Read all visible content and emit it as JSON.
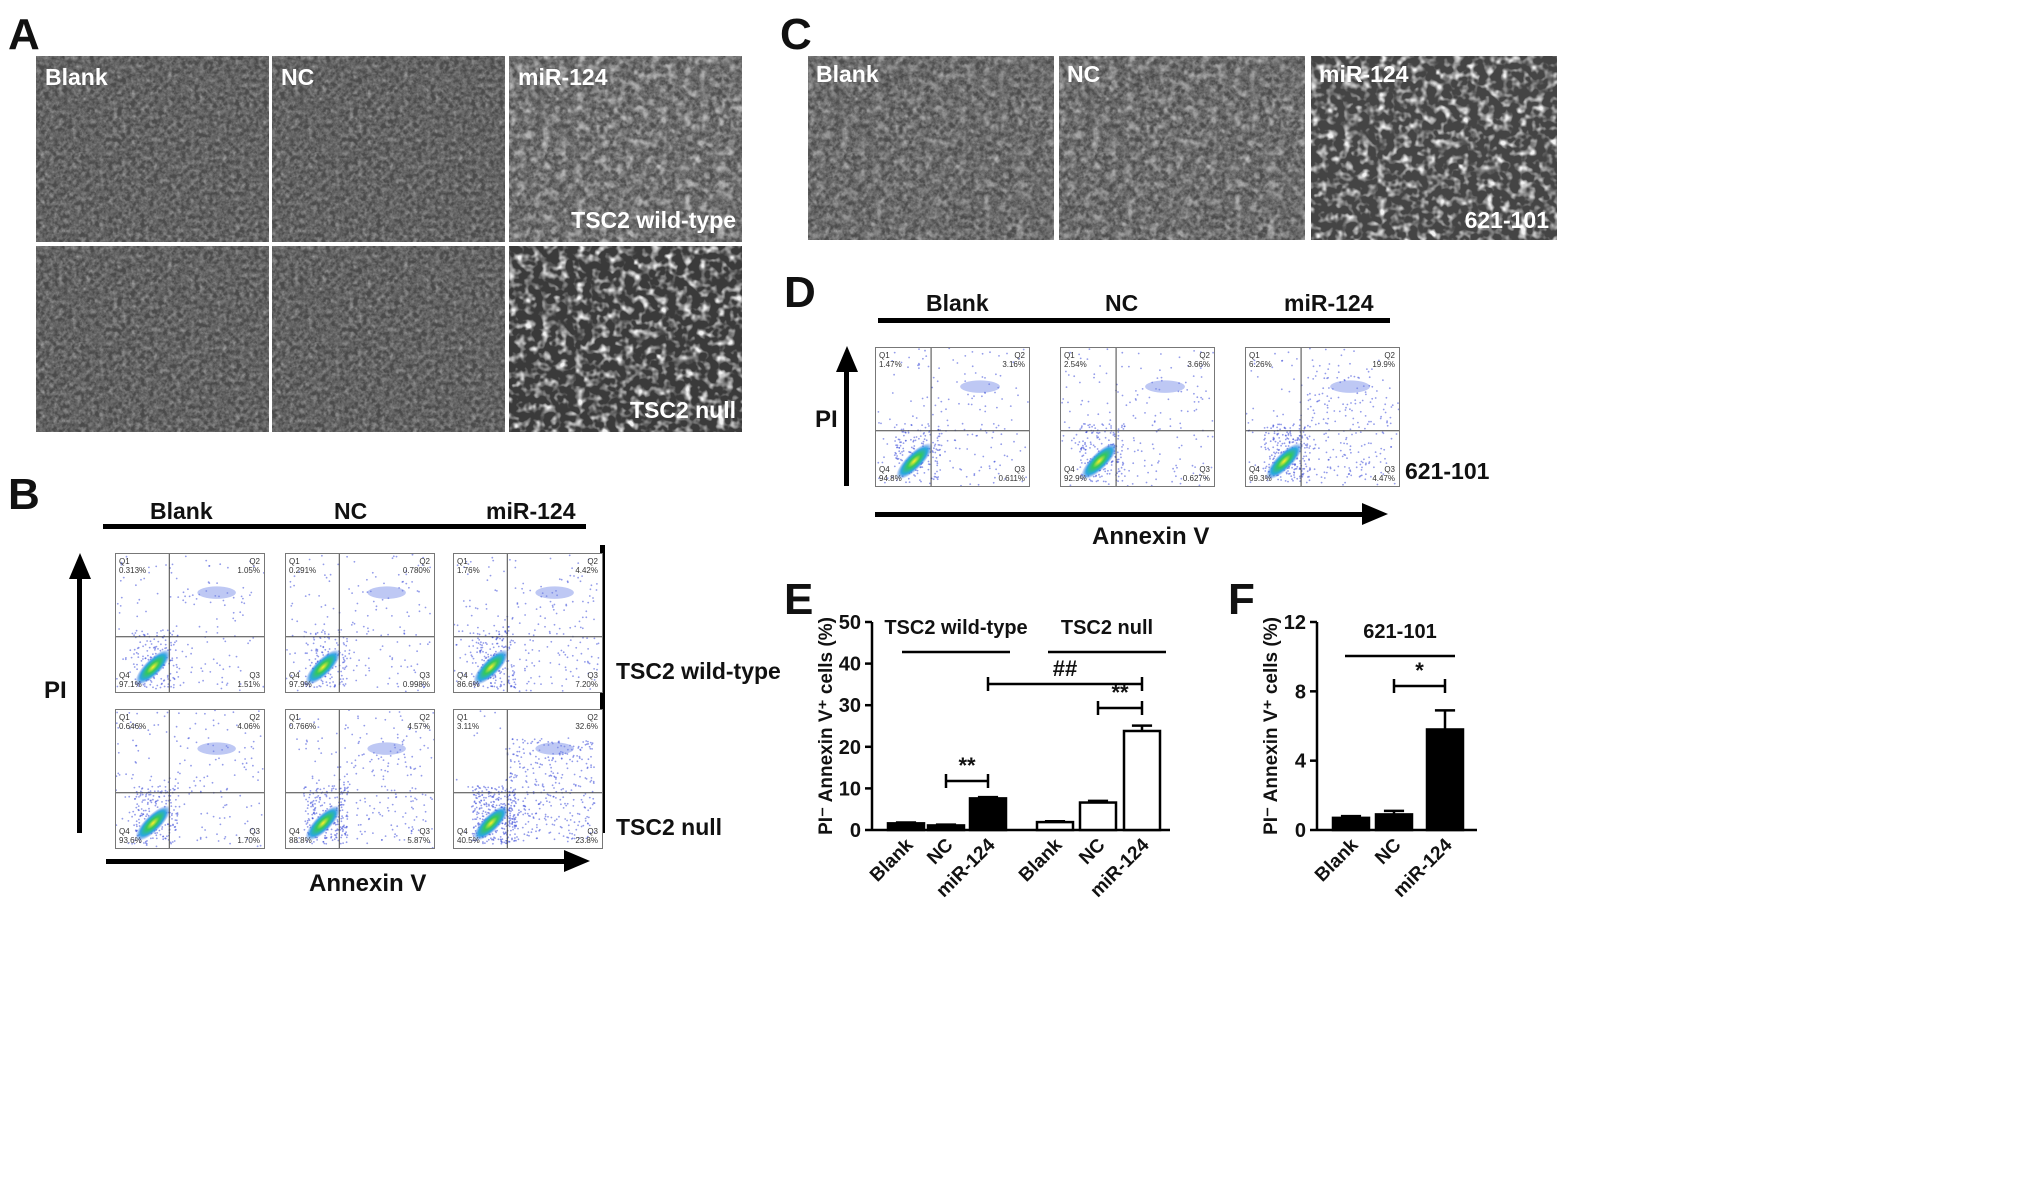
{
  "panels": {
    "A": {
      "letter": "A",
      "images": [
        {
          "label": "Blank"
        },
        {
          "label": "NC"
        },
        {
          "label": "miR-124",
          "corner": "TSC2 wild-type"
        },
        {
          "label": "Blank",
          "hidden": true
        },
        {
          "label": "NC",
          "hidden": true
        },
        {
          "label": "miR-124",
          "hidden": true,
          "corner": "TSC2 null"
        }
      ],
      "corner_top": "TSC2 wild-type",
      "corner_bottom": "TSC2 null"
    },
    "B": {
      "letter": "B",
      "columns": [
        "Blank",
        "NC",
        "miR-124"
      ],
      "row_labels": [
        "TSC2 wild-type",
        "TSC2 null"
      ],
      "y_axis": "PI",
      "x_axis": "Annexin V",
      "plots": [
        {
          "q1": "0.313%",
          "q2": "1.05%",
          "q3": "1.51%",
          "q4": "97.1%"
        },
        {
          "q1": "0.291%",
          "q2": "0.780%",
          "q3": "0.998%",
          "q4": "97.9%"
        },
        {
          "q1": "1.76%",
          "q2": "4.42%",
          "q3": "7.20%",
          "q4": "86.6%"
        },
        {
          "q1": "0.646%",
          "q2": "4.06%",
          "q3": "1.70%",
          "q4": "93.6%"
        },
        {
          "q1": "0.766%",
          "q2": "4.57%",
          "q3": "5.87%",
          "q4": "88.8%"
        },
        {
          "q1": "3.11%",
          "q2": "32.6%",
          "q3": "23.8%",
          "q4": "40.5%"
        }
      ]
    },
    "C": {
      "letter": "C",
      "images": [
        {
          "label": "Blank"
        },
        {
          "label": "NC"
        },
        {
          "label": "miR-124"
        }
      ],
      "corner": "621-101"
    },
    "D": {
      "letter": "D",
      "columns": [
        "Blank",
        "NC",
        "miR-124"
      ],
      "row_label": "621-101",
      "y_axis": "PI",
      "x_axis": "Annexin V",
      "plots": [
        {
          "q1": "1.47%",
          "q2": "3.16%",
          "q3": "0.611%",
          "q4": "94.8%"
        },
        {
          "q1": "2.54%",
          "q2": "3.66%",
          "q3": "0.627%",
          "q4": "92.9%"
        },
        {
          "q1": "6.26%",
          "q2": "19.9%",
          "q3": "4.47%",
          "q4": "69.3%"
        }
      ]
    },
    "E": {
      "letter": "E"
    },
    "F": {
      "letter": "F"
    }
  },
  "chart_data": [
    {
      "type": "bar",
      "panel": "E",
      "ylabel": "PI⁻ Annexin V⁺ cells (%)",
      "ylim": [
        0,
        50
      ],
      "yticks": [
        0,
        10,
        20,
        30,
        40,
        50
      ],
      "groups": [
        "TSC2 wild-type",
        "TSC2 null"
      ],
      "categories": [
        "Blank",
        "NC",
        "miR-124",
        "Blank",
        "NC",
        "miR-124"
      ],
      "values": [
        1.6,
        1.1,
        7.6,
        1.9,
        6.6,
        23.8
      ],
      "errors": [
        0.2,
        0.2,
        0.3,
        0.2,
        0.4,
        1.3
      ],
      "fills": [
        "#000000",
        "#000000",
        "#000000",
        "#ffffff",
        "#ffffff",
        "#ffffff"
      ],
      "annotations": [
        {
          "text": "**",
          "from": 1,
          "to": 2
        },
        {
          "text": "**",
          "from": 4,
          "to": 5
        },
        {
          "text": "##",
          "from": 2,
          "to": 5
        }
      ]
    },
    {
      "type": "bar",
      "panel": "F",
      "ylabel": "PI⁻ Annexin V⁺ cells (%)",
      "ylim": [
        0,
        12
      ],
      "yticks": [
        0,
        4,
        8,
        12
      ],
      "groups": [
        "621-101"
      ],
      "categories": [
        "Blank",
        "NC",
        "miR-124"
      ],
      "values": [
        0.7,
        0.9,
        5.8
      ],
      "errors": [
        0.1,
        0.2,
        1.1
      ],
      "fills": [
        "#000000",
        "#000000",
        "#000000"
      ],
      "annotations": [
        {
          "text": "*",
          "from": 1,
          "to": 2
        }
      ]
    }
  ]
}
